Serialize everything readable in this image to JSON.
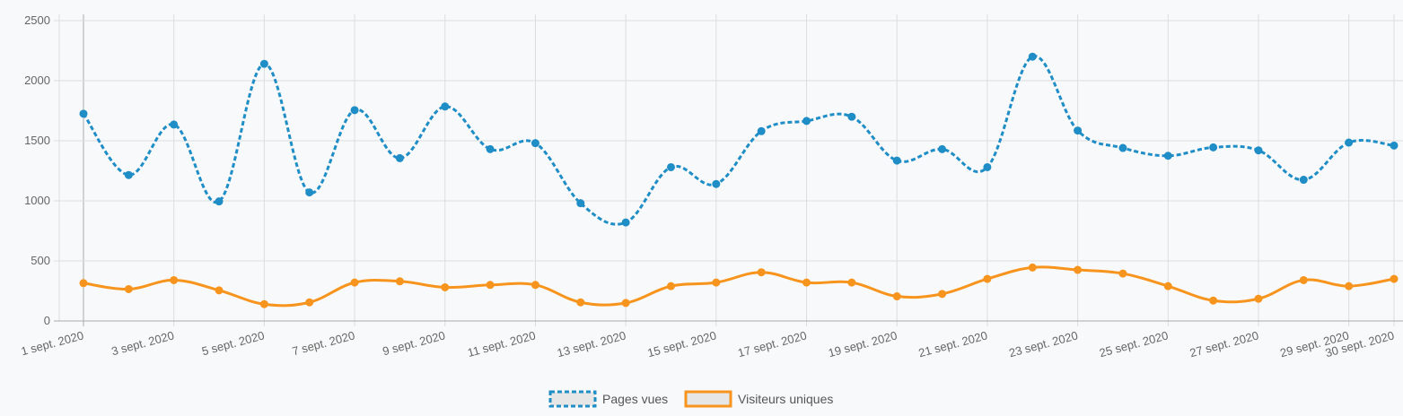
{
  "chart_data": {
    "type": "line",
    "categories": [
      "1 sept. 2020",
      "2 sept. 2020",
      "3 sept. 2020",
      "4 sept. 2020",
      "5 sept. 2020",
      "6 sept. 2020",
      "7 sept. 2020",
      "8 sept. 2020",
      "9 sept. 2020",
      "10 sept. 2020",
      "11 sept. 2020",
      "12 sept. 2020",
      "13 sept. 2020",
      "14 sept. 2020",
      "15 sept. 2020",
      "16 sept. 2020",
      "17 sept. 2020",
      "18 sept. 2020",
      "19 sept. 2020",
      "20 sept. 2020",
      "21 sept. 2020",
      "22 sept. 2020",
      "23 sept. 2020",
      "24 sept. 2020",
      "25 sept. 2020",
      "26 sept. 2020",
      "27 sept. 2020",
      "28 sept. 2020",
      "29 sept. 2020",
      "30 sept. 2020"
    ],
    "x_tick_labels": [
      "1 sept. 2020",
      "3 sept. 2020",
      "5 sept. 2020",
      "7 sept. 2020",
      "9 sept. 2020",
      "11 sept. 2020",
      "13 sept. 2020",
      "15 sept. 2020",
      "17 sept. 2020",
      "19 sept. 2020",
      "21 sept. 2020",
      "23 sept. 2020",
      "25 sept. 2020",
      "27 sept. 2020",
      "29 sept. 2020",
      "30 sept. 2020"
    ],
    "y_ticks": [
      0,
      500,
      1000,
      1500,
      2000,
      2500
    ],
    "ylim": [
      0,
      2500
    ],
    "grid": true,
    "legend_position": "bottom",
    "series": [
      {
        "name": "Pages vues",
        "color": "#1f8dc6",
        "dashed": true,
        "values": [
          1725,
          1215,
          1635,
          995,
          2140,
          1070,
          1755,
          1355,
          1785,
          1430,
          1480,
          980,
          820,
          1280,
          1140,
          1580,
          1665,
          1700,
          1335,
          1430,
          1280,
          2200,
          1585,
          1440,
          1375,
          1445,
          1420,
          1175,
          1485,
          1460
        ]
      },
      {
        "name": "Visiteurs uniques",
        "color": "#f7941d",
        "dashed": false,
        "values": [
          315,
          265,
          340,
          255,
          140,
          155,
          320,
          330,
          280,
          300,
          300,
          155,
          150,
          290,
          320,
          405,
          320,
          320,
          205,
          225,
          350,
          445,
          425,
          395,
          290,
          170,
          185,
          340,
          290,
          350
        ]
      }
    ]
  }
}
